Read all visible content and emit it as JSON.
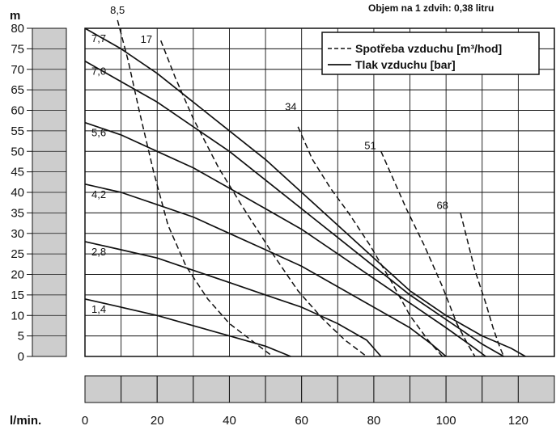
{
  "chart_data": {
    "type": "line",
    "title": "Objem na 1 zdvih: 0,38 litru",
    "xlabel": "l/min.",
    "ylabel": "m",
    "xlim": [
      0,
      130
    ],
    "ylim": [
      0,
      80
    ],
    "x_ticks": [
      "0",
      "20",
      "40",
      "60",
      "80",
      "100",
      "120"
    ],
    "y_ticks": [
      "0",
      "5",
      "10",
      "15",
      "20",
      "25",
      "30",
      "35",
      "40",
      "45",
      "50",
      "55",
      "60",
      "65",
      "70",
      "75",
      "80"
    ],
    "grid": true,
    "legend": {
      "position": "top-right",
      "entries": [
        {
          "label": "Spotřeba vzduchu [m³/hod]",
          "style": "dashed"
        },
        {
          "label": "Tlak vzduchu [bar]",
          "style": "solid"
        }
      ]
    },
    "pressure_series": [
      {
        "name": "7,7",
        "points": [
          [
            0,
            80
          ],
          [
            10,
            75
          ],
          [
            20,
            69
          ],
          [
            30,
            62
          ],
          [
            40,
            55
          ],
          [
            50,
            48
          ],
          [
            60,
            40
          ],
          [
            70,
            32
          ],
          [
            80,
            24
          ],
          [
            90,
            16
          ],
          [
            100,
            10
          ],
          [
            110,
            5
          ],
          [
            118,
            2
          ],
          [
            122,
            0
          ]
        ]
      },
      {
        "name": "7,0",
        "points": [
          [
            0,
            72
          ],
          [
            10,
            67
          ],
          [
            20,
            62
          ],
          [
            30,
            56
          ],
          [
            40,
            50
          ],
          [
            50,
            43
          ],
          [
            60,
            36
          ],
          [
            70,
            29
          ],
          [
            80,
            22
          ],
          [
            90,
            15
          ],
          [
            100,
            9
          ],
          [
            110,
            3
          ],
          [
            116,
            0
          ]
        ]
      },
      {
        "name": "5,6",
        "points": [
          [
            0,
            57
          ],
          [
            10,
            54
          ],
          [
            20,
            50
          ],
          [
            30,
            46
          ],
          [
            40,
            41
          ],
          [
            50,
            36
          ],
          [
            60,
            31
          ],
          [
            70,
            25
          ],
          [
            80,
            19
          ],
          [
            90,
            13
          ],
          [
            100,
            7
          ],
          [
            108,
            2
          ],
          [
            111,
            0
          ]
        ]
      },
      {
        "name": "4,2",
        "points": [
          [
            0,
            42
          ],
          [
            10,
            40
          ],
          [
            20,
            37
          ],
          [
            30,
            34
          ],
          [
            40,
            30
          ],
          [
            50,
            26
          ],
          [
            60,
            22
          ],
          [
            70,
            17
          ],
          [
            80,
            12
          ],
          [
            90,
            7
          ],
          [
            96,
            3
          ],
          [
            100,
            0
          ]
        ]
      },
      {
        "name": "2,8",
        "points": [
          [
            0,
            28
          ],
          [
            10,
            26
          ],
          [
            20,
            24
          ],
          [
            30,
            21
          ],
          [
            40,
            18
          ],
          [
            50,
            15
          ],
          [
            60,
            12
          ],
          [
            70,
            8
          ],
          [
            78,
            4
          ],
          [
            82,
            0
          ]
        ]
      },
      {
        "name": "1,4",
        "points": [
          [
            0,
            14
          ],
          [
            10,
            12
          ],
          [
            20,
            10
          ],
          [
            30,
            7.5
          ],
          [
            40,
            5
          ],
          [
            50,
            2.5
          ],
          [
            57,
            0
          ]
        ]
      }
    ],
    "consumption_series": [
      {
        "name": "8,5",
        "points": [
          [
            9,
            82
          ],
          [
            12,
            72
          ],
          [
            15,
            60
          ],
          [
            19,
            45
          ],
          [
            23,
            32
          ],
          [
            28,
            22
          ],
          [
            34,
            14
          ],
          [
            40,
            8
          ],
          [
            46,
            4
          ],
          [
            52,
            0
          ]
        ]
      },
      {
        "name": "17",
        "points": [
          [
            21,
            77
          ],
          [
            25,
            68
          ],
          [
            30,
            58
          ],
          [
            37,
            46
          ],
          [
            44,
            36
          ],
          [
            52,
            25
          ],
          [
            59,
            16
          ],
          [
            66,
            9
          ],
          [
            72,
            4
          ],
          [
            78,
            0
          ]
        ]
      },
      {
        "name": "34",
        "points": [
          [
            59,
            56
          ],
          [
            63,
            48
          ],
          [
            68,
            41
          ],
          [
            73,
            35
          ],
          [
            79,
            27
          ],
          [
            85,
            18
          ],
          [
            90,
            10
          ],
          [
            95,
            4
          ],
          [
            99,
            0
          ]
        ]
      },
      {
        "name": "51",
        "points": [
          [
            82,
            50
          ],
          [
            85,
            44
          ],
          [
            89,
            36
          ],
          [
            94,
            27
          ],
          [
            99,
            17
          ],
          [
            103,
            8
          ],
          [
            106,
            3
          ],
          [
            108,
            0
          ]
        ]
      },
      {
        "name": "68",
        "points": [
          [
            104,
            35
          ],
          [
            106,
            28
          ],
          [
            108,
            21
          ],
          [
            111,
            13
          ],
          [
            113,
            7
          ],
          [
            115,
            2
          ],
          [
            116,
            0
          ]
        ]
      }
    ]
  },
  "units": {
    "y": "m",
    "x": "l/min."
  }
}
